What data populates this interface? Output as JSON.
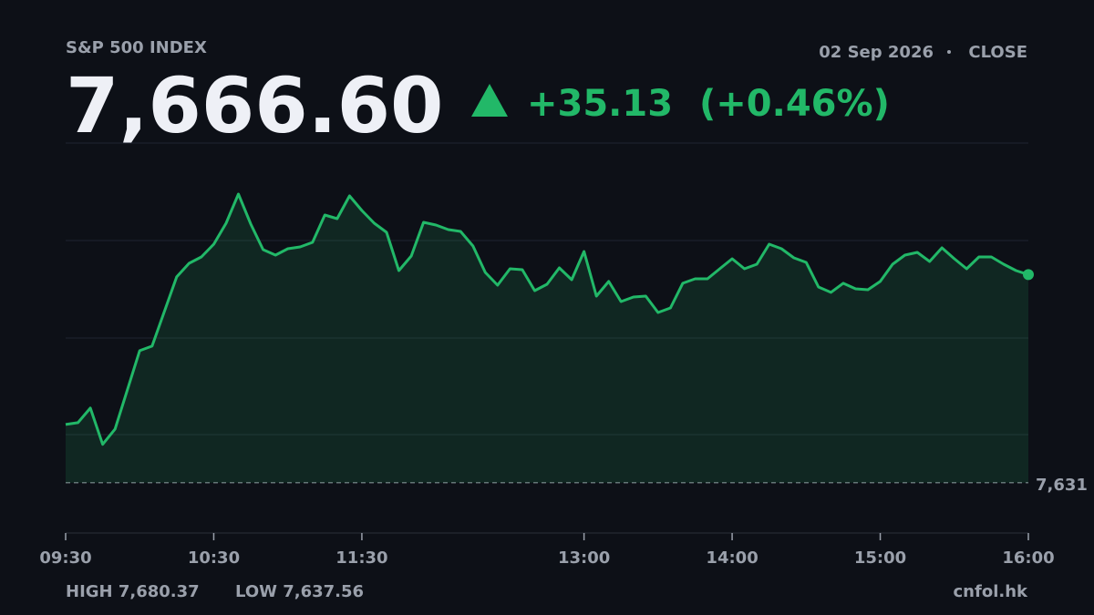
{
  "header": {
    "title": "S&P 500 INDEX",
    "date": "02 Sep 2026",
    "session": "CLOSE",
    "last": "7,666.60",
    "change": "+35.13",
    "change_pct": "(+0.46%)"
  },
  "chart_data": {
    "type": "line",
    "color": "#22b868",
    "x": [
      "09:30",
      "09:35",
      "09:40",
      "09:45",
      "09:50",
      "09:55",
      "10:00",
      "10:05",
      "10:10",
      "10:15",
      "10:20",
      "10:25",
      "10:30",
      "10:35",
      "10:40",
      "10:45",
      "10:50",
      "10:55",
      "11:00",
      "11:05",
      "11:10",
      "11:15",
      "11:20",
      "11:25",
      "11:30",
      "11:35",
      "11:40",
      "11:45",
      "11:50",
      "11:55",
      "12:00",
      "12:05",
      "12:10",
      "12:15",
      "12:20",
      "12:25",
      "12:30",
      "12:35",
      "12:40",
      "12:45",
      "12:50",
      "12:55",
      "13:00",
      "13:05",
      "13:10",
      "13:15",
      "13:20",
      "13:25",
      "13:30",
      "13:35",
      "13:40",
      "13:45",
      "13:50",
      "13:55",
      "14:00",
      "14:05",
      "14:10",
      "14:15",
      "14:20",
      "14:25",
      "14:30",
      "14:35",
      "14:40",
      "14:45",
      "14:50",
      "14:55",
      "15:00",
      "15:05",
      "15:10",
      "15:15",
      "15:20",
      "15:25",
      "15:30",
      "15:35",
      "15:40",
      "15:45",
      "15:50",
      "15:55",
      "16:00"
    ],
    "values": [
      7640.96,
      7641.27,
      7643.77,
      7637.56,
      7640.18,
      7646.88,
      7653.58,
      7654.36,
      7660.28,
      7666.2,
      7668.53,
      7669.62,
      7671.8,
      7675.39,
      7680.37,
      7675.23,
      7670.87,
      7669.93,
      7671.02,
      7671.34,
      7672.11,
      7676.79,
      7676.16,
      7680.06,
      7677.57,
      7675.39,
      7673.83,
      7667.29,
      7669.78,
      7675.54,
      7675.07,
      7674.3,
      7673.98,
      7671.49,
      7666.97,
      7664.79,
      7667.6,
      7667.44,
      7663.86,
      7664.95,
      7667.75,
      7665.73,
      7670.56,
      7662.92,
      7665.42,
      7661.99,
      7662.77,
      7662.92,
      7660.12,
      7660.9,
      7665.11,
      7665.88,
      7665.88,
      7667.6,
      7669.31,
      7667.6,
      7668.38,
      7671.8,
      7671.02,
      7669.47,
      7668.69,
      7664.48,
      7663.55,
      7665.11,
      7664.17,
      7664.01,
      7665.42,
      7668.38,
      7669.93,
      7670.4,
      7668.84,
      7671.18,
      7669.31,
      7667.6,
      7669.62,
      7669.62,
      7668.38,
      7667.29,
      7666.6
    ],
    "xlim": [
      "09:30",
      "16:00"
    ],
    "xticks": [
      "09:30",
      "10:30",
      "11:30",
      "13:00",
      "14:00",
      "15:00",
      "16:00"
    ],
    "ylim": [
      7622.4,
      7689.1
    ],
    "reference_line": {
      "value": 7631,
      "label": "7,631"
    }
  },
  "footer": {
    "high": "HIGH 7,680.37",
    "low": "LOW 7,637.56",
    "source": "cnfol.hk"
  }
}
